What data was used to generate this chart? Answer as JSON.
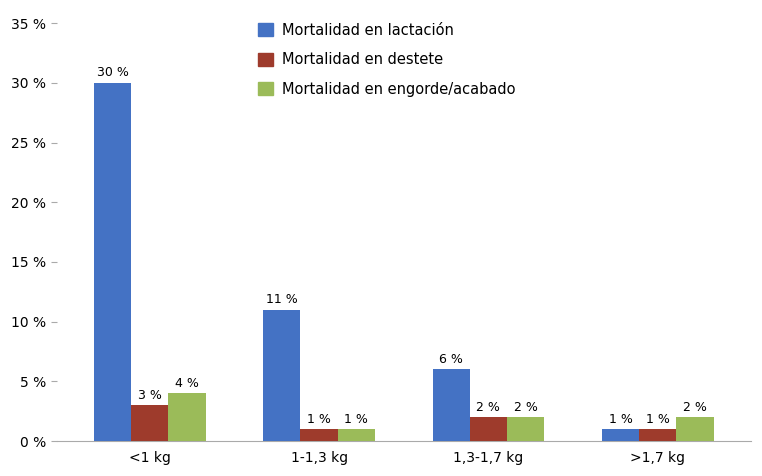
{
  "categories": [
    "<1 kg",
    "1-1,3 kg",
    "1,3-1,7 kg",
    ">1,7 kg"
  ],
  "series": [
    {
      "label": "Mortalidad en lactación",
      "color": "#4472C4",
      "values": [
        30,
        11,
        6,
        1
      ]
    },
    {
      "label": "Mortalidad en destete",
      "color": "#9E3B2C",
      "values": [
        3,
        1,
        2,
        1
      ]
    },
    {
      "label": "Mortalidad en engorde/acabado",
      "color": "#9BBB59",
      "values": [
        4,
        1,
        2,
        2
      ]
    }
  ],
  "ylim": [
    0,
    36
  ],
  "yticks": [
    0,
    5,
    10,
    15,
    20,
    25,
    30,
    35
  ],
  "bar_width": 0.22,
  "background_color": "#FFFFFF",
  "label_fontsize": 10,
  "tick_fontsize": 10,
  "legend_fontsize": 10.5
}
